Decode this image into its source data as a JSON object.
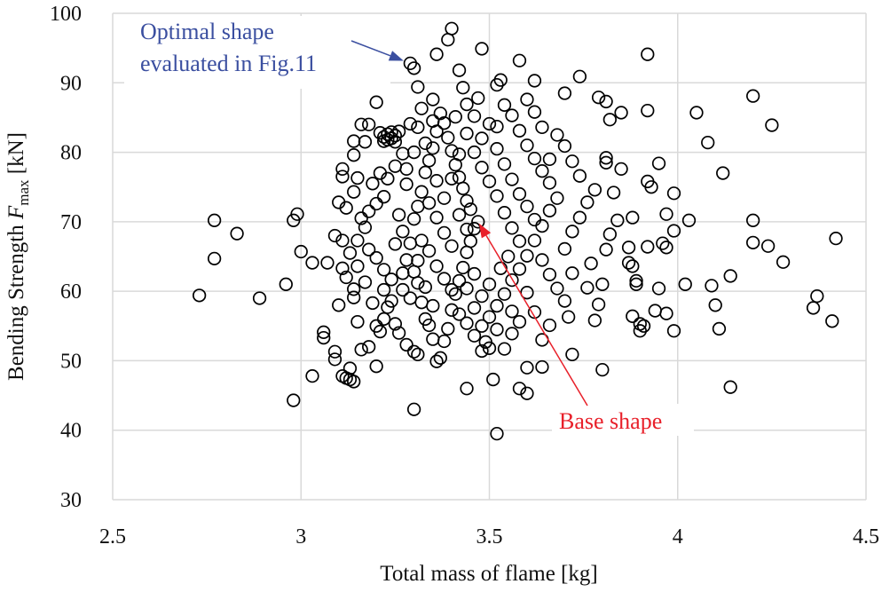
{
  "chart_data": {
    "type": "scatter",
    "xlabel": "Total mass of flame [kg]",
    "ylabel": {
      "prefix": "Bending Strength ",
      "symbol": "F",
      "subscript": "max",
      "suffix": " [kN]"
    },
    "xlim": [
      2.5,
      4.5
    ],
    "ylim": [
      30,
      100
    ],
    "x_ticks": [
      "2.5",
      "3",
      "3.5",
      "4",
      "4.5"
    ],
    "y_ticks": [
      "30",
      "40",
      "50",
      "60",
      "70",
      "80",
      "90",
      "100"
    ],
    "grid": true,
    "marker": "open-circle",
    "colors": {
      "marker": "#000000",
      "grid": "#d9d9d9",
      "optimal_annotation": "#3b4fa0",
      "base_annotation": "#e8202a"
    },
    "annotations": [
      {
        "id": "optimal",
        "lines": [
          "Optimal shape",
          "evaluated in Fig.11"
        ],
        "target": [
          3.29,
          92.8
        ]
      },
      {
        "id": "base",
        "lines": [
          "Base shape"
        ],
        "target": [
          3.47,
          70.0
        ]
      }
    ],
    "points": [
      [
        2.73,
        59.4
      ],
      [
        2.77,
        70.2
      ],
      [
        2.77,
        64.7
      ],
      [
        2.83,
        68.3
      ],
      [
        2.89,
        59.0
      ],
      [
        2.96,
        61.0
      ],
      [
        2.98,
        44.3
      ],
      [
        2.98,
        70.2
      ],
      [
        2.99,
        71.1
      ],
      [
        3.0,
        65.7
      ],
      [
        3.03,
        64.1
      ],
      [
        3.03,
        47.8
      ],
      [
        3.07,
        64.1
      ],
      [
        3.06,
        54.1
      ],
      [
        3.06,
        53.3
      ],
      [
        3.09,
        51.3
      ],
      [
        3.09,
        50.2
      ],
      [
        3.1,
        58.0
      ],
      [
        3.09,
        68.0
      ],
      [
        3.1,
        72.8
      ],
      [
        3.11,
        77.6
      ],
      [
        3.11,
        76.5
      ],
      [
        3.11,
        67.3
      ],
      [
        3.11,
        63.3
      ],
      [
        3.12,
        62.0
      ],
      [
        3.11,
        47.8
      ],
      [
        3.12,
        47.5
      ],
      [
        3.13,
        47.3
      ],
      [
        3.13,
        48.9
      ],
      [
        3.14,
        47.0
      ],
      [
        3.14,
        60.3
      ],
      [
        3.14,
        59.1
      ],
      [
        3.15,
        67.3
      ],
      [
        3.15,
        63.6
      ],
      [
        3.14,
        81.6
      ],
      [
        3.16,
        84.0
      ],
      [
        3.18,
        84.0
      ],
      [
        3.17,
        81.5
      ],
      [
        3.14,
        79.6
      ],
      [
        3.2,
        87.2
      ],
      [
        3.21,
        82.8
      ],
      [
        3.22,
        82.2
      ],
      [
        3.23,
        82.6
      ],
      [
        3.23,
        81.8
      ],
      [
        3.24,
        82.9
      ],
      [
        3.24,
        82.0
      ],
      [
        3.25,
        82.4
      ],
      [
        3.22,
        81.6
      ],
      [
        3.25,
        81.5
      ],
      [
        3.26,
        83.0
      ],
      [
        3.29,
        92.8
      ],
      [
        3.3,
        92.1
      ],
      [
        3.31,
        89.4
      ],
      [
        3.35,
        87.6
      ],
      [
        3.36,
        94.1
      ],
      [
        3.39,
        96.2
      ],
      [
        3.4,
        97.8
      ],
      [
        3.48,
        94.9
      ],
      [
        3.42,
        91.8
      ],
      [
        3.43,
        89.3
      ],
      [
        3.52,
        89.7
      ],
      [
        3.53,
        90.4
      ],
      [
        3.58,
        93.2
      ],
      [
        3.62,
        90.3
      ],
      [
        3.74,
        90.9
      ],
      [
        3.7,
        88.5
      ],
      [
        3.79,
        87.9
      ],
      [
        3.81,
        87.3
      ],
      [
        3.85,
        85.7
      ],
      [
        3.82,
        84.7
      ],
      [
        3.92,
        94.1
      ],
      [
        3.92,
        86.0
      ],
      [
        4.05,
        85.7
      ],
      [
        4.08,
        81.4
      ],
      [
        4.12,
        77.0
      ],
      [
        4.2,
        88.1
      ],
      [
        4.25,
        83.9
      ],
      [
        4.2,
        70.2
      ],
      [
        4.2,
        67.0
      ],
      [
        4.24,
        66.5
      ],
      [
        4.28,
        64.2
      ],
      [
        4.42,
        67.6
      ],
      [
        4.36,
        57.6
      ],
      [
        4.37,
        59.3
      ],
      [
        4.41,
        55.7
      ],
      [
        4.14,
        62.2
      ],
      [
        4.09,
        60.8
      ],
      [
        4.1,
        58.0
      ],
      [
        4.11,
        54.6
      ],
      [
        4.14,
        46.2
      ],
      [
        4.02,
        61.0
      ],
      [
        3.99,
        54.3
      ],
      [
        3.95,
        60.4
      ],
      [
        3.94,
        57.2
      ],
      [
        3.97,
        56.8
      ],
      [
        4.03,
        70.2
      ],
      [
        3.99,
        74.1
      ],
      [
        3.97,
        71.1
      ],
      [
        3.92,
        75.8
      ],
      [
        3.93,
        75.0
      ],
      [
        3.95,
        78.4
      ],
      [
        3.96,
        66.9
      ],
      [
        3.97,
        66.3
      ],
      [
        3.99,
        68.7
      ],
      [
        3.92,
        66.4
      ],
      [
        3.91,
        55.0
      ],
      [
        3.9,
        54.3
      ],
      [
        3.9,
        55.3
      ],
      [
        3.89,
        61.5
      ],
      [
        3.89,
        61.0
      ],
      [
        3.88,
        63.6
      ],
      [
        3.87,
        64.1
      ],
      [
        3.87,
        66.3
      ],
      [
        3.88,
        56.4
      ],
      [
        3.88,
        70.6
      ],
      [
        3.84,
        70.2
      ],
      [
        3.82,
        68.2
      ],
      [
        3.81,
        66.0
      ],
      [
        3.8,
        48.7
      ],
      [
        3.81,
        79.2
      ],
      [
        3.81,
        78.5
      ],
      [
        3.83,
        74.2
      ],
      [
        3.8,
        61.0
      ],
      [
        3.79,
        58.1
      ],
      [
        3.78,
        55.8
      ],
      [
        3.85,
        77.6
      ],
      [
        3.3,
        43.0
      ],
      [
        3.52,
        39.5
      ],
      [
        3.44,
        46.0
      ],
      [
        3.51,
        47.3
      ],
      [
        3.58,
        46.0
      ],
      [
        3.6,
        45.3
      ],
      [
        3.6,
        49.0
      ],
      [
        3.64,
        49.1
      ],
      [
        3.72,
        50.9
      ],
      [
        3.48,
        51.4
      ],
      [
        3.49,
        52.7
      ],
      [
        3.71,
        56.3
      ],
      [
        3.76,
        60.5
      ],
      [
        3.77,
        64.0
      ],
      [
        3.2,
        55.0
      ],
      [
        3.21,
        54.2
      ],
      [
        3.22,
        56.0
      ],
      [
        3.19,
        58.3
      ],
      [
        3.18,
        52.0
      ],
      [
        3.2,
        49.2
      ],
      [
        3.23,
        57.7
      ],
      [
        3.25,
        55.3
      ],
      [
        3.26,
        54.0
      ],
      [
        3.28,
        52.3
      ],
      [
        3.3,
        51.3
      ],
      [
        3.31,
        50.9
      ],
      [
        3.29,
        59.0
      ],
      [
        3.27,
        60.2
      ],
      [
        3.24,
        61.7
      ],
      [
        3.22,
        63.1
      ],
      [
        3.2,
        64.8
      ],
      [
        3.18,
        66.0
      ],
      [
        3.17,
        69.2
      ],
      [
        3.16,
        70.5
      ],
      [
        3.18,
        71.5
      ],
      [
        3.2,
        72.6
      ],
      [
        3.22,
        73.6
      ],
      [
        3.19,
        75.5
      ],
      [
        3.21,
        77.0
      ],
      [
        3.23,
        76.2
      ],
      [
        3.25,
        78.0
      ],
      [
        3.27,
        79.8
      ],
      [
        3.28,
        75.4
      ],
      [
        3.26,
        71.0
      ],
      [
        3.27,
        68.6
      ],
      [
        3.25,
        66.8
      ],
      [
        3.28,
        64.5
      ],
      [
        3.3,
        62.8
      ],
      [
        3.31,
        61.2
      ],
      [
        3.32,
        58.4
      ],
      [
        3.33,
        56.0
      ],
      [
        3.34,
        55.1
      ],
      [
        3.35,
        53.1
      ],
      [
        3.36,
        49.9
      ],
      [
        3.37,
        50.4
      ],
      [
        3.38,
        52.8
      ],
      [
        3.39,
        54.6
      ],
      [
        3.4,
        57.3
      ],
      [
        3.41,
        59.6
      ],
      [
        3.42,
        61.5
      ],
      [
        3.43,
        63.4
      ],
      [
        3.44,
        65.6
      ],
      [
        3.45,
        67.2
      ],
      [
        3.46,
        69.0
      ],
      [
        3.47,
        70.0
      ],
      [
        3.45,
        71.8
      ],
      [
        3.44,
        73.0
      ],
      [
        3.43,
        74.8
      ],
      [
        3.42,
        76.4
      ],
      [
        3.41,
        78.2
      ],
      [
        3.4,
        80.2
      ],
      [
        3.39,
        82.1
      ],
      [
        3.38,
        84.2
      ],
      [
        3.37,
        85.6
      ],
      [
        3.36,
        83.0
      ],
      [
        3.35,
        80.6
      ],
      [
        3.34,
        78.8
      ],
      [
        3.33,
        77.1
      ],
      [
        3.32,
        74.3
      ],
      [
        3.31,
        72.2
      ],
      [
        3.3,
        70.4
      ],
      [
        3.32,
        67.3
      ],
      [
        3.34,
        65.8
      ],
      [
        3.36,
        63.6
      ],
      [
        3.38,
        61.8
      ],
      [
        3.4,
        60.2
      ],
      [
        3.42,
        56.7
      ],
      [
        3.44,
        55.4
      ],
      [
        3.46,
        53.6
      ],
      [
        3.48,
        55.0
      ],
      [
        3.5,
        56.3
      ],
      [
        3.52,
        57.9
      ],
      [
        3.54,
        59.6
      ],
      [
        3.56,
        61.6
      ],
      [
        3.58,
        63.2
      ],
      [
        3.6,
        65.1
      ],
      [
        3.62,
        67.3
      ],
      [
        3.64,
        69.4
      ],
      [
        3.66,
        71.6
      ],
      [
        3.68,
        73.4
      ],
      [
        3.66,
        75.6
      ],
      [
        3.64,
        77.3
      ],
      [
        3.62,
        79.1
      ],
      [
        3.6,
        81.0
      ],
      [
        3.58,
        83.1
      ],
      [
        3.56,
        85.3
      ],
      [
        3.54,
        86.8
      ],
      [
        3.5,
        84.1
      ],
      [
        3.48,
        82.0
      ],
      [
        3.46,
        80.0
      ],
      [
        3.48,
        77.8
      ],
      [
        3.5,
        75.8
      ],
      [
        3.52,
        73.7
      ],
      [
        3.54,
        71.3
      ],
      [
        3.56,
        69.1
      ],
      [
        3.58,
        67.2
      ],
      [
        3.55,
        65.0
      ],
      [
        3.53,
        63.3
      ],
      [
        3.5,
        61.0
      ],
      [
        3.48,
        59.3
      ],
      [
        3.46,
        62.5
      ],
      [
        3.44,
        68.9
      ],
      [
        3.42,
        71.0
      ],
      [
        3.4,
        66.5
      ],
      [
        3.38,
        68.4
      ],
      [
        3.36,
        70.6
      ],
      [
        3.34,
        72.7
      ],
      [
        3.36,
        75.9
      ],
      [
        3.38,
        73.4
      ],
      [
        3.4,
        76.2
      ],
      [
        3.42,
        79.7
      ],
      [
        3.44,
        82.7
      ],
      [
        3.46,
        85.2
      ],
      [
        3.44,
        86.9
      ],
      [
        3.52,
        80.5
      ],
      [
        3.54,
        78.3
      ],
      [
        3.56,
        76.1
      ],
      [
        3.58,
        74.0
      ],
      [
        3.6,
        72.2
      ],
      [
        3.62,
        70.3
      ],
      [
        3.64,
        64.5
      ],
      [
        3.66,
        62.4
      ],
      [
        3.68,
        60.4
      ],
      [
        3.7,
        58.6
      ],
      [
        3.72,
        62.6
      ],
      [
        3.7,
        66.1
      ],
      [
        3.72,
        68.6
      ],
      [
        3.74,
        70.6
      ],
      [
        3.76,
        72.8
      ],
      [
        3.78,
        74.6
      ],
      [
        3.74,
        76.6
      ],
      [
        3.72,
        78.7
      ],
      [
        3.7,
        80.9
      ],
      [
        3.68,
        82.5
      ],
      [
        3.66,
        79.0
      ],
      [
        3.64,
        83.6
      ],
      [
        3.62,
        85.8
      ],
      [
        3.6,
        87.6
      ],
      [
        3.66,
        55.1
      ],
      [
        3.64,
        53.0
      ],
      [
        3.62,
        57.0
      ],
      [
        3.6,
        59.8
      ],
      [
        3.58,
        55.6
      ],
      [
        3.56,
        53.9
      ],
      [
        3.54,
        51.7
      ],
      [
        3.56,
        57.1
      ],
      [
        3.52,
        54.5
      ],
      [
        3.5,
        51.8
      ],
      [
        3.46,
        57.6
      ],
      [
        3.44,
        60.4
      ],
      [
        3.35,
        57.9
      ],
      [
        3.33,
        60.6
      ],
      [
        3.31,
        64.4
      ],
      [
        3.29,
        66.9
      ],
      [
        3.27,
        62.6
      ],
      [
        3.24,
        58.6
      ],
      [
        3.22,
        60.2
      ],
      [
        3.15,
        55.6
      ],
      [
        3.16,
        51.6
      ],
      [
        3.17,
        61.3
      ],
      [
        3.13,
        65.5
      ],
      [
        3.12,
        72.0
      ],
      [
        3.14,
        74.3
      ],
      [
        3.15,
        76.3
      ],
      [
        3.29,
        84.1
      ],
      [
        3.31,
        83.6
      ],
      [
        3.33,
        81.3
      ],
      [
        3.35,
        84.5
      ],
      [
        3.3,
        80.0
      ],
      [
        3.28,
        77.6
      ],
      [
        3.32,
        86.3
      ],
      [
        3.41,
        85.1
      ],
      [
        3.47,
        87.8
      ],
      [
        3.52,
        83.7
      ]
    ]
  }
}
